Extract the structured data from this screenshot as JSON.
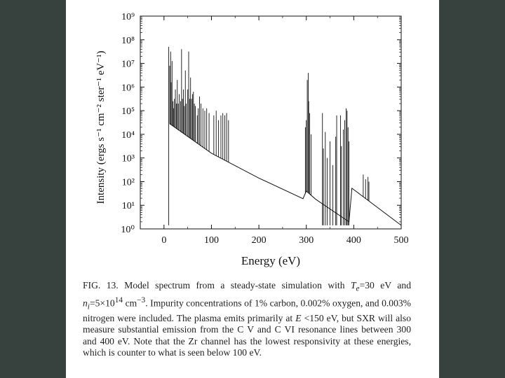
{
  "background_color": "#37423f",
  "panel_color": "#ffffff",
  "chart_data": {
    "type": "line",
    "title": "",
    "xlabel": "Energy (eV)",
    "ylabel": "Intensity (ergs s⁻¹ cm⁻² ster⁻¹ eV⁻¹)",
    "xlim": [
      -50,
      500
    ],
    "ylim_log10": [
      0,
      9
    ],
    "y_scale": "log",
    "x_ticks": [
      0,
      100,
      200,
      300,
      400,
      500
    ],
    "x_tick_labels": [
      "0",
      "100",
      "200",
      "300",
      "400",
      "500"
    ],
    "y_tick_exponents": [
      0,
      1,
      2,
      3,
      4,
      5,
      6,
      7,
      8,
      9
    ],
    "y_tick_labels": [
      "10⁰",
      "10¹",
      "10²",
      "10³",
      "10⁴",
      "10⁵",
      "10⁶",
      "10⁷",
      "10⁸",
      "10⁹"
    ],
    "grid": false,
    "line_color": "#111111",
    "series": [
      {
        "values_description_omitted": true,
        "continuum": [
          [
            12,
            4.45
          ],
          [
            100,
            3.2
          ],
          [
            200,
            2.15
          ],
          [
            293,
            1.28
          ],
          [
            300,
            1.6
          ],
          [
            320,
            1.25
          ],
          [
            390,
            0.3
          ],
          [
            396,
            1.72
          ],
          [
            500,
            0.15
          ]
        ],
        "lines": [
          [
            10,
            7.7
          ],
          [
            12,
            6.9
          ],
          [
            14,
            7.5
          ],
          [
            15,
            6.2
          ],
          [
            17,
            7.1
          ],
          [
            19,
            5.4
          ],
          [
            20,
            5.1
          ],
          [
            22,
            5.5
          ],
          [
            24,
            5.9
          ],
          [
            26,
            5.3
          ],
          [
            28,
            6.3
          ],
          [
            30,
            5.3
          ],
          [
            32,
            5.7
          ],
          [
            35,
            5.4
          ],
          [
            37,
            7.6
          ],
          [
            39,
            5.5
          ],
          [
            41,
            5.9
          ],
          [
            43,
            5.2
          ],
          [
            45,
            6.7
          ],
          [
            47,
            5.3
          ],
          [
            50,
            5.9
          ],
          [
            52,
            7.5
          ],
          [
            54,
            5.5
          ],
          [
            56,
            6.4
          ],
          [
            58,
            5.5
          ],
          [
            60,
            5.7
          ],
          [
            62,
            5.8
          ],
          [
            64,
            5.3
          ],
          [
            66,
            5.2
          ],
          [
            70,
            4.8
          ],
          [
            72,
            5.1
          ],
          [
            75,
            5.6
          ],
          [
            78,
            5.3
          ],
          [
            82,
            5.1
          ],
          [
            86,
            5.0
          ],
          [
            90,
            5.1
          ],
          [
            95,
            4.9
          ],
          [
            105,
            4.8
          ],
          [
            110,
            5.0
          ],
          [
            115,
            4.6
          ],
          [
            120,
            4.8
          ],
          [
            124,
            4.9
          ],
          [
            128,
            4.8
          ],
          [
            132,
            4.9
          ],
          [
            136,
            4.6
          ],
          [
            298,
            4.3
          ],
          [
            300,
            4.6
          ],
          [
            302,
            6.3
          ],
          [
            304,
            6.6
          ],
          [
            305,
            5.4
          ],
          [
            307,
            4.9
          ],
          [
            310,
            4.0
          ],
          [
            334,
            4.9
          ],
          [
            336,
            3.4
          ],
          [
            340,
            4.1
          ],
          [
            344,
            3.0
          ],
          [
            350,
            3.7
          ],
          [
            356,
            2.7
          ],
          [
            362,
            3.9
          ],
          [
            364,
            4.8
          ],
          [
            372,
            4.8
          ],
          [
            374,
            3.5
          ],
          [
            378,
            4.2
          ],
          [
            381,
            4.6
          ],
          [
            384,
            5.1
          ],
          [
            386,
            5.0
          ],
          [
            388,
            4.3
          ],
          [
            390,
            3.7
          ],
          [
            420,
            2.3
          ],
          [
            425,
            2.1
          ],
          [
            430,
            2.2
          ],
          [
            432,
            2.0
          ]
        ]
      }
    ]
  },
  "caption": {
    "label": "FIG. 13.",
    "text_1": "Model spectrum from a steady-state simulation with",
    "te_symbol": "T",
    "te_sub": "e",
    "te_value": "=30 eV",
    "and_word": "and",
    "ni_symbol": "n",
    "ni_sub": "i",
    "ni_value": "=5×10",
    "ni_exp": "14",
    "ni_unit": "cm",
    "ni_unit_exp": "−3",
    "text_2": ". Impurity concentrations of 1% carbon, 0.002% oxygen, and 0.003% nitrogen were included. The plasma emits primarily at",
    "e_symbol": "E",
    "text_3": "<150 eV, but SXR will also measure substantial emission from the C V and C VI resonance lines between 300 and 400 eV. Note that the Zr channel has the lowest responsivity at these energies, which is counter to what is seen below 100 eV."
  }
}
